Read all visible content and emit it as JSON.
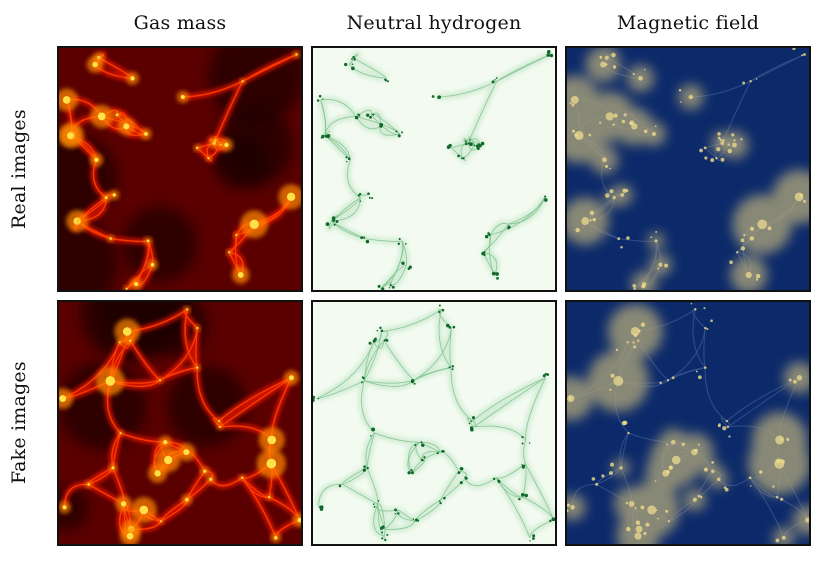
{
  "columns": [
    {
      "title": "Gas mass"
    },
    {
      "title": "Neutral hydrogen"
    },
    {
      "title": "Magnetic field"
    }
  ],
  "rows": [
    {
      "title": "Real images"
    },
    {
      "title": "Fake images"
    }
  ],
  "colors": {
    "gas_background": "#5a0000",
    "gas_filament": "#ff3a00",
    "gas_node": "#ffe24a",
    "hi_background": "#f3fbf1",
    "hi_filament": "#7cc08a",
    "hi_node": "#0f6a2a",
    "bfield_background": "#0c2a6a",
    "bfield_filament": "#3c5792",
    "bfield_node": "#d8c889"
  }
}
